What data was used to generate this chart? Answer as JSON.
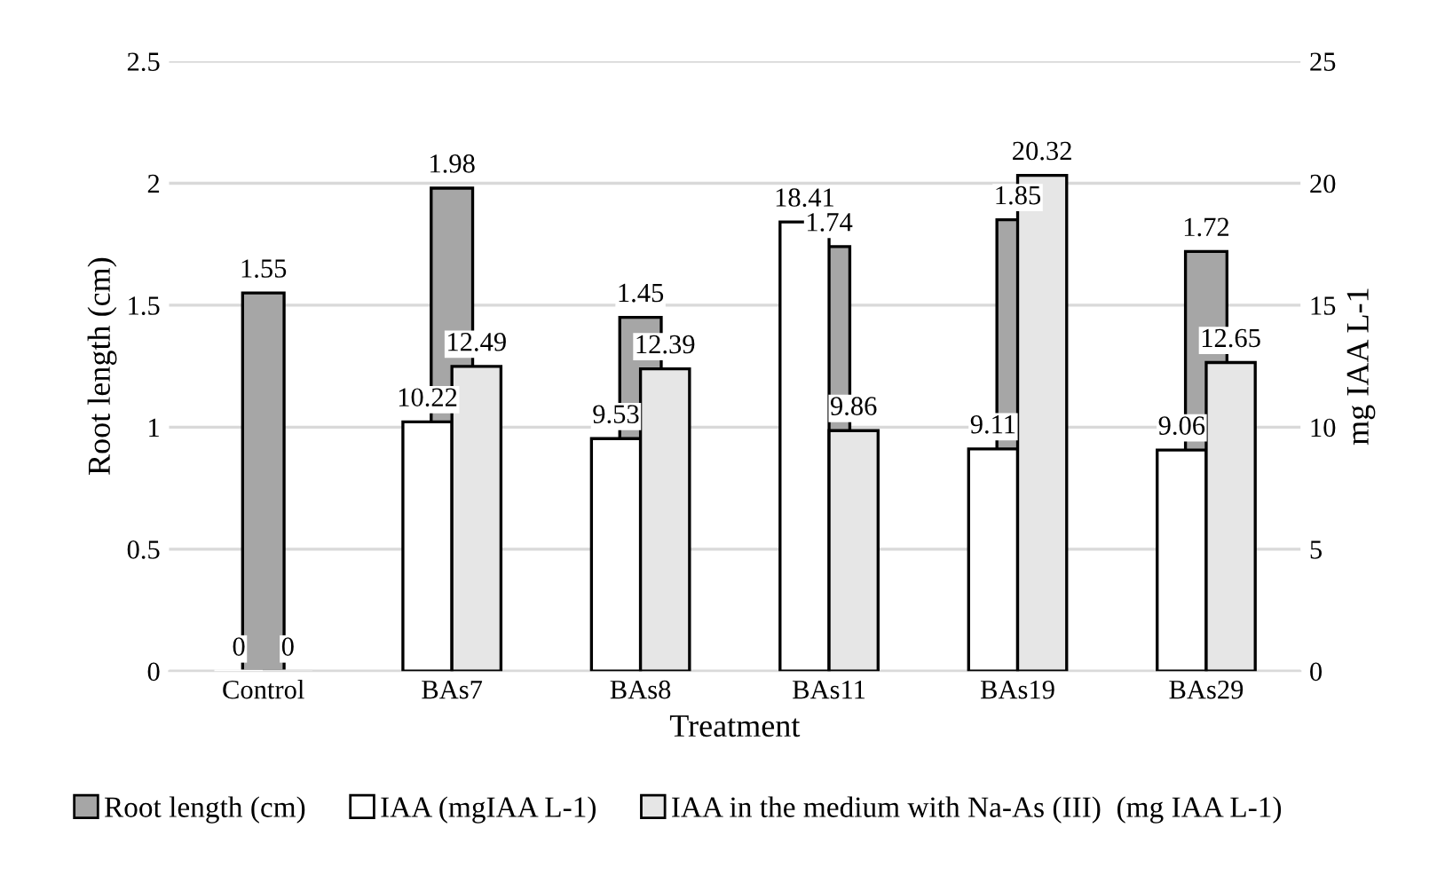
{
  "chart_data": {
    "type": "bar",
    "xlabel": "Treatment",
    "ylabel": "Root length (cm)",
    "y2label": "mg IAA L-1",
    "categories": [
      "Control",
      "BAs7",
      "BAs8",
      "BAs11",
      "BAs19",
      "BAs29"
    ],
    "series": [
      {
        "name": "IAA (mgIAA L-1)",
        "color": "#ffffff",
        "axis": "y2",
        "values": [
          0,
          10.22,
          9.53,
          18.41,
          9.11,
          9.06
        ]
      },
      {
        "name": "Root length (cm)",
        "color": "#a6a6a6",
        "values": [
          1.55,
          1.98,
          1.45,
          1.74,
          1.85,
          1.72
        ]
      },
      {
        "name": "IAA in the medium with Na-As (III)  (mg IAA L-1)",
        "color": "#e6e6e6",
        "axis": "y2",
        "values": [
          0,
          12.49,
          12.39,
          9.86,
          20.32,
          12.65
        ]
      }
    ],
    "ylim": [
      0,
      2.5
    ],
    "yticks": [
      0,
      0.5,
      1,
      1.5,
      2,
      2.5
    ],
    "y2lim": [
      0,
      25
    ],
    "y2ticks": [
      0,
      5,
      10,
      15,
      20,
      25
    ],
    "grid": "y",
    "legend": "bottom",
    "data_labels": true
  }
}
